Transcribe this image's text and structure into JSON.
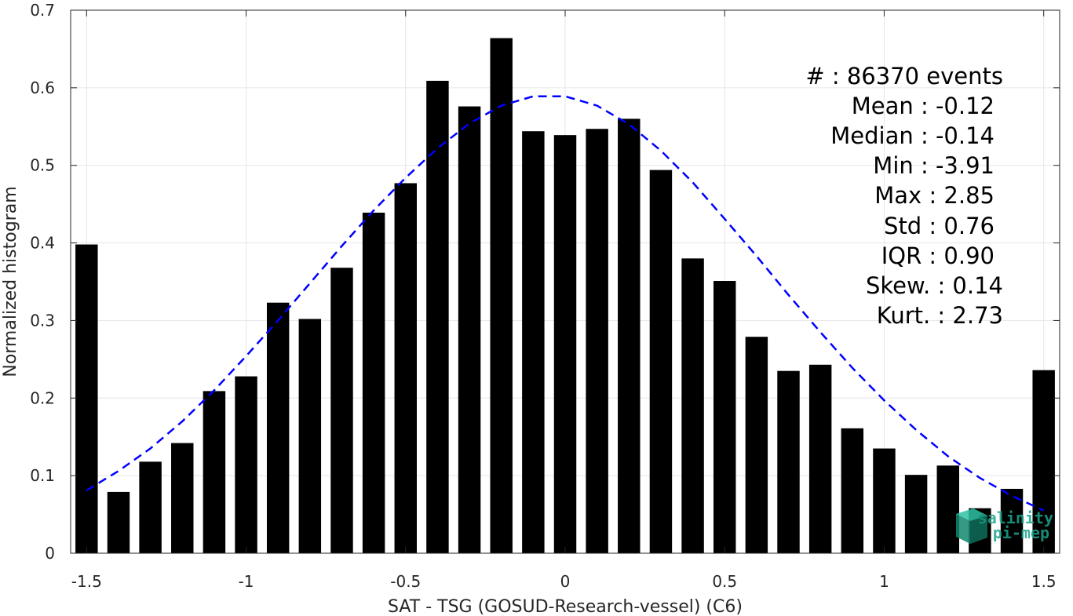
{
  "chart_data": {
    "type": "bar",
    "xlabel": "SAT - TSG (GOSUD-Research-vessel) (C6)",
    "ylabel": "Normalized histogram",
    "xlim": [
      -1.55,
      1.55
    ],
    "ylim": [
      0,
      0.7
    ],
    "xticks": [
      -1.5,
      -1,
      -0.5,
      0,
      0.5,
      1,
      1.5
    ],
    "xtick_labels": [
      "-1.5",
      "-1",
      "-0.5",
      "0",
      "0.5",
      "1",
      "1.5"
    ],
    "yticks": [
      0,
      0.1,
      0.2,
      0.3,
      0.4,
      0.5,
      0.6,
      0.7
    ],
    "ytick_labels": [
      "0",
      "0.1",
      "0.2",
      "0.3",
      "0.4",
      "0.5",
      "0.6",
      "0.7"
    ],
    "grid": true,
    "bar_color": "#000000",
    "bar_width": 0.07,
    "x": [
      -1.5,
      -1.4,
      -1.3,
      -1.2,
      -1.1,
      -1.0,
      -0.9,
      -0.8,
      -0.7,
      -0.6,
      -0.5,
      -0.4,
      -0.3,
      -0.2,
      -0.1,
      0.0,
      0.1,
      0.2,
      0.3,
      0.4,
      0.5,
      0.6,
      0.7,
      0.8,
      0.9,
      1.0,
      1.1,
      1.2,
      1.3,
      1.4,
      1.5
    ],
    "values": [
      0.398,
      0.079,
      0.118,
      0.142,
      0.209,
      0.228,
      0.323,
      0.302,
      0.368,
      0.439,
      0.477,
      0.609,
      0.576,
      0.664,
      0.544,
      0.539,
      0.547,
      0.56,
      0.494,
      0.38,
      0.351,
      0.279,
      0.235,
      0.243,
      0.161,
      0.135,
      0.101,
      0.113,
      0.058,
      0.083,
      0.236
    ],
    "fit_curve": {
      "style": "dashed",
      "color": "#0000ff",
      "x": [
        -1.5,
        -1.4,
        -1.3,
        -1.2,
        -1.1,
        -1.0,
        -0.9,
        -0.8,
        -0.7,
        -0.6,
        -0.5,
        -0.4,
        -0.3,
        -0.2,
        -0.1,
        0.0,
        0.1,
        0.2,
        0.3,
        0.4,
        0.5,
        0.6,
        0.7,
        0.8,
        0.9,
        1.0,
        1.1,
        1.2,
        1.3,
        1.4,
        1.5
      ],
      "y": [
        0.081,
        0.106,
        0.135,
        0.17,
        0.21,
        0.254,
        0.3,
        0.348,
        0.396,
        0.442,
        0.484,
        0.522,
        0.554,
        0.577,
        0.589,
        0.589,
        0.577,
        0.553,
        0.519,
        0.478,
        0.431,
        0.383,
        0.333,
        0.285,
        0.239,
        0.197,
        0.159,
        0.125,
        0.097,
        0.074,
        0.055
      ]
    }
  },
  "stats": [
    {
      "label": "#  : 86370 events"
    },
    {
      "label": "Mean : -0.12"
    },
    {
      "label": "Median : -0.14"
    },
    {
      "label": "Min : -3.91"
    },
    {
      "label": "Max : 2.85"
    },
    {
      "label": "Std : 0.76"
    },
    {
      "label": "IQR : 0.90"
    },
    {
      "label": "Skew. : 0.14"
    },
    {
      "label": "Kurt. : 2.73"
    }
  ],
  "logo": {
    "line1": "salinity",
    "line2": "pi-mep",
    "color": "#1aa58c"
  }
}
